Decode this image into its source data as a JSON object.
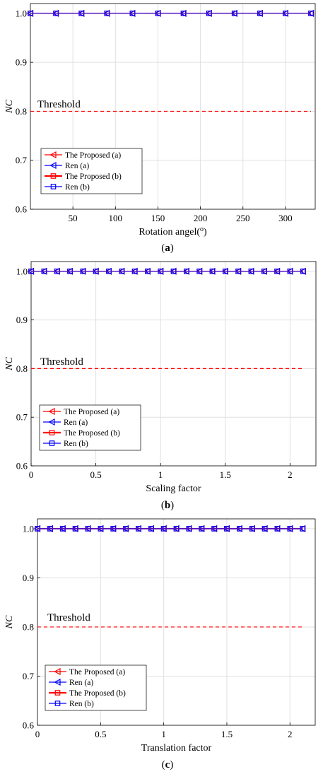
{
  "charts_meta": {
    "marker_style": "triangle-left / square",
    "grid": true
  },
  "chart_data": [
    {
      "type": "line",
      "caption_letter": "a",
      "x": [
        0,
        30,
        60,
        90,
        120,
        150,
        180,
        210,
        240,
        270,
        300,
        330
      ],
      "xlim": [
        0,
        335
      ],
      "xticks": [
        50,
        100,
        150,
        200,
        250,
        300
      ],
      "xticklabels": [
        "50",
        "100",
        "150",
        "200",
        "250",
        "300"
      ],
      "ylim": [
        0.6,
        1.02
      ],
      "yticks": [
        0.6,
        0.7,
        0.8,
        0.9,
        1.0
      ],
      "yticklabels": [
        "0.6",
        "0.7",
        "0.8",
        "0.9",
        "1.0"
      ],
      "xlabel_main": "Rotation angel(",
      "xlabel_sup": "o",
      "xlabel_end": ")",
      "ylabel": "NC",
      "threshold": 0.8,
      "threshold_label": "Threshold",
      "series": [
        {
          "name": "The Proposed (a)",
          "color": "#ff0000",
          "marker": "triangle-left",
          "values": [
            1,
            1,
            1,
            1,
            1,
            1,
            1,
            1,
            1,
            1,
            1,
            1
          ]
        },
        {
          "name": "Ren (a)",
          "color": "#0000ff",
          "marker": "triangle-left",
          "values": [
            1,
            1,
            1,
            1,
            1,
            1,
            1,
            1,
            1,
            1,
            1,
            1
          ]
        },
        {
          "name": "The Proposed (b)",
          "color": "#ff0000",
          "marker": "square",
          "values": [
            1,
            1,
            1,
            1,
            1,
            1,
            1,
            1,
            1,
            1,
            1,
            1
          ]
        },
        {
          "name": "Ren (b)",
          "color": "#0000ff",
          "marker": "square",
          "values": [
            1,
            1,
            1,
            1,
            1,
            1,
            1,
            1,
            1,
            1,
            1,
            1
          ]
        }
      ]
    },
    {
      "type": "line",
      "caption_letter": "b",
      "x": [
        0,
        0.1,
        0.2,
        0.3,
        0.4,
        0.5,
        0.6,
        0.7,
        0.8,
        0.9,
        1.0,
        1.1,
        1.2,
        1.3,
        1.4,
        1.5,
        1.6,
        1.7,
        1.8,
        1.9,
        2.0,
        2.1
      ],
      "xlim": [
        0,
        2.2
      ],
      "xticks": [
        0,
        0.5,
        1,
        1.5,
        2
      ],
      "xticklabels": [
        "0",
        "0.5",
        "1",
        "1.5",
        "2"
      ],
      "ylim": [
        0.6,
        1.02
      ],
      "yticks": [
        0.6,
        0.7,
        0.8,
        0.9,
        1.0
      ],
      "yticklabels": [
        "0.6",
        "0.7",
        "0.8",
        "0.9",
        "1.0"
      ],
      "xlabel_main": "Scaling factor",
      "xlabel_sup": "",
      "xlabel_end": "",
      "ylabel": "NC",
      "threshold": 0.8,
      "threshold_label": "Threshold",
      "series": [
        {
          "name": "The Proposed (a)",
          "color": "#ff0000",
          "marker": "triangle-left",
          "values": [
            1,
            1,
            1,
            1,
            1,
            1,
            1,
            1,
            1,
            1,
            1,
            1,
            1,
            1,
            1,
            1,
            1,
            1,
            1,
            1,
            1,
            1
          ]
        },
        {
          "name": "Ren (a)",
          "color": "#0000ff",
          "marker": "triangle-left",
          "values": [
            1,
            1,
            1,
            1,
            1,
            1,
            1,
            1,
            1,
            1,
            1,
            1,
            1,
            1,
            1,
            1,
            1,
            1,
            1,
            1,
            1,
            1
          ]
        },
        {
          "name": "The Proposed (b)",
          "color": "#ff0000",
          "marker": "square",
          "values": [
            1,
            1,
            1,
            1,
            1,
            1,
            1,
            1,
            1,
            1,
            1,
            1,
            1,
            1,
            1,
            1,
            1,
            1,
            1,
            1,
            1,
            1
          ]
        },
        {
          "name": "Ren (b)",
          "color": "#0000ff",
          "marker": "square",
          "values": [
            1,
            1,
            1,
            1,
            1,
            1,
            1,
            1,
            1,
            1,
            1,
            1,
            1,
            1,
            1,
            1,
            1,
            1,
            1,
            1,
            1,
            1
          ]
        }
      ]
    },
    {
      "type": "line",
      "caption_letter": "c",
      "x": [
        0,
        0.1,
        0.2,
        0.3,
        0.4,
        0.5,
        0.6,
        0.7,
        0.8,
        0.9,
        1.0,
        1.1,
        1.2,
        1.3,
        1.4,
        1.5,
        1.6,
        1.7,
        1.8,
        1.9,
        2.0,
        2.1
      ],
      "xlim": [
        0,
        2.2
      ],
      "xticks": [
        0,
        0.5,
        1,
        1.5,
        2
      ],
      "xticklabels": [
        "0",
        "0.5",
        "1",
        "1.5",
        "2"
      ],
      "ylim": [
        0.6,
        1.02
      ],
      "yticks": [
        0.6,
        0.7,
        0.8,
        0.9,
        1.0
      ],
      "yticklabels": [
        "0.6",
        "0.7",
        "0.8",
        "0.9",
        "1.0"
      ],
      "xlabel_main": "Translation factor",
      "xlabel_sup": "",
      "xlabel_end": "",
      "ylabel": "NC",
      "threshold": 0.8,
      "threshold_label": "Threshold",
      "series": [
        {
          "name": "The Proposed (a)",
          "color": "#ff0000",
          "marker": "triangle-left",
          "values": [
            1,
            1,
            1,
            1,
            1,
            1,
            1,
            1,
            1,
            1,
            1,
            1,
            1,
            1,
            1,
            1,
            1,
            1,
            1,
            1,
            1,
            1
          ]
        },
        {
          "name": "Ren (a)",
          "color": "#0000ff",
          "marker": "triangle-left",
          "values": [
            1,
            1,
            1,
            1,
            1,
            1,
            1,
            1,
            1,
            1,
            1,
            1,
            1,
            1,
            1,
            1,
            1,
            1,
            1,
            1,
            1,
            1
          ]
        },
        {
          "name": "The Proposed (b)",
          "color": "#ff0000",
          "marker": "square",
          "values": [
            1,
            1,
            1,
            1,
            1,
            1,
            1,
            1,
            1,
            1,
            1,
            1,
            1,
            1,
            1,
            1,
            1,
            1,
            1,
            1,
            1,
            1
          ]
        },
        {
          "name": "Ren (b)",
          "color": "#0000ff",
          "marker": "square",
          "values": [
            1,
            1,
            1,
            1,
            1,
            1,
            1,
            1,
            1,
            1,
            1,
            1,
            1,
            1,
            1,
            1,
            1,
            1,
            1,
            1,
            1,
            1
          ]
        }
      ]
    }
  ]
}
